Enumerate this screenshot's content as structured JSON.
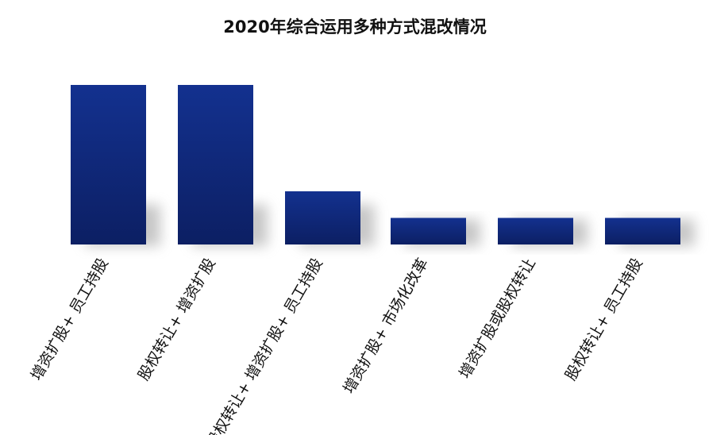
{
  "chart_data": {
    "type": "bar",
    "title": "2020年综合运用多种方式混改情况",
    "categories": [
      "增资扩股+ 员工持股",
      "股权转让+ 增资扩股",
      "股权转让+ 增资扩股+ 员工持股",
      "增资扩股+ 市场化改革",
      "增资扩股或股权转让",
      "股权转让+ 员工持股"
    ],
    "values": [
      6,
      6,
      2,
      1,
      1,
      1
    ],
    "ylim": [
      0,
      6
    ],
    "xlabel": "",
    "ylabel": "",
    "grid": false,
    "legend": "none",
    "colors": {
      "bar_top": "#13318f",
      "bar_bottom": "#0c1f63",
      "shadow": "#9a9a9a"
    }
  }
}
